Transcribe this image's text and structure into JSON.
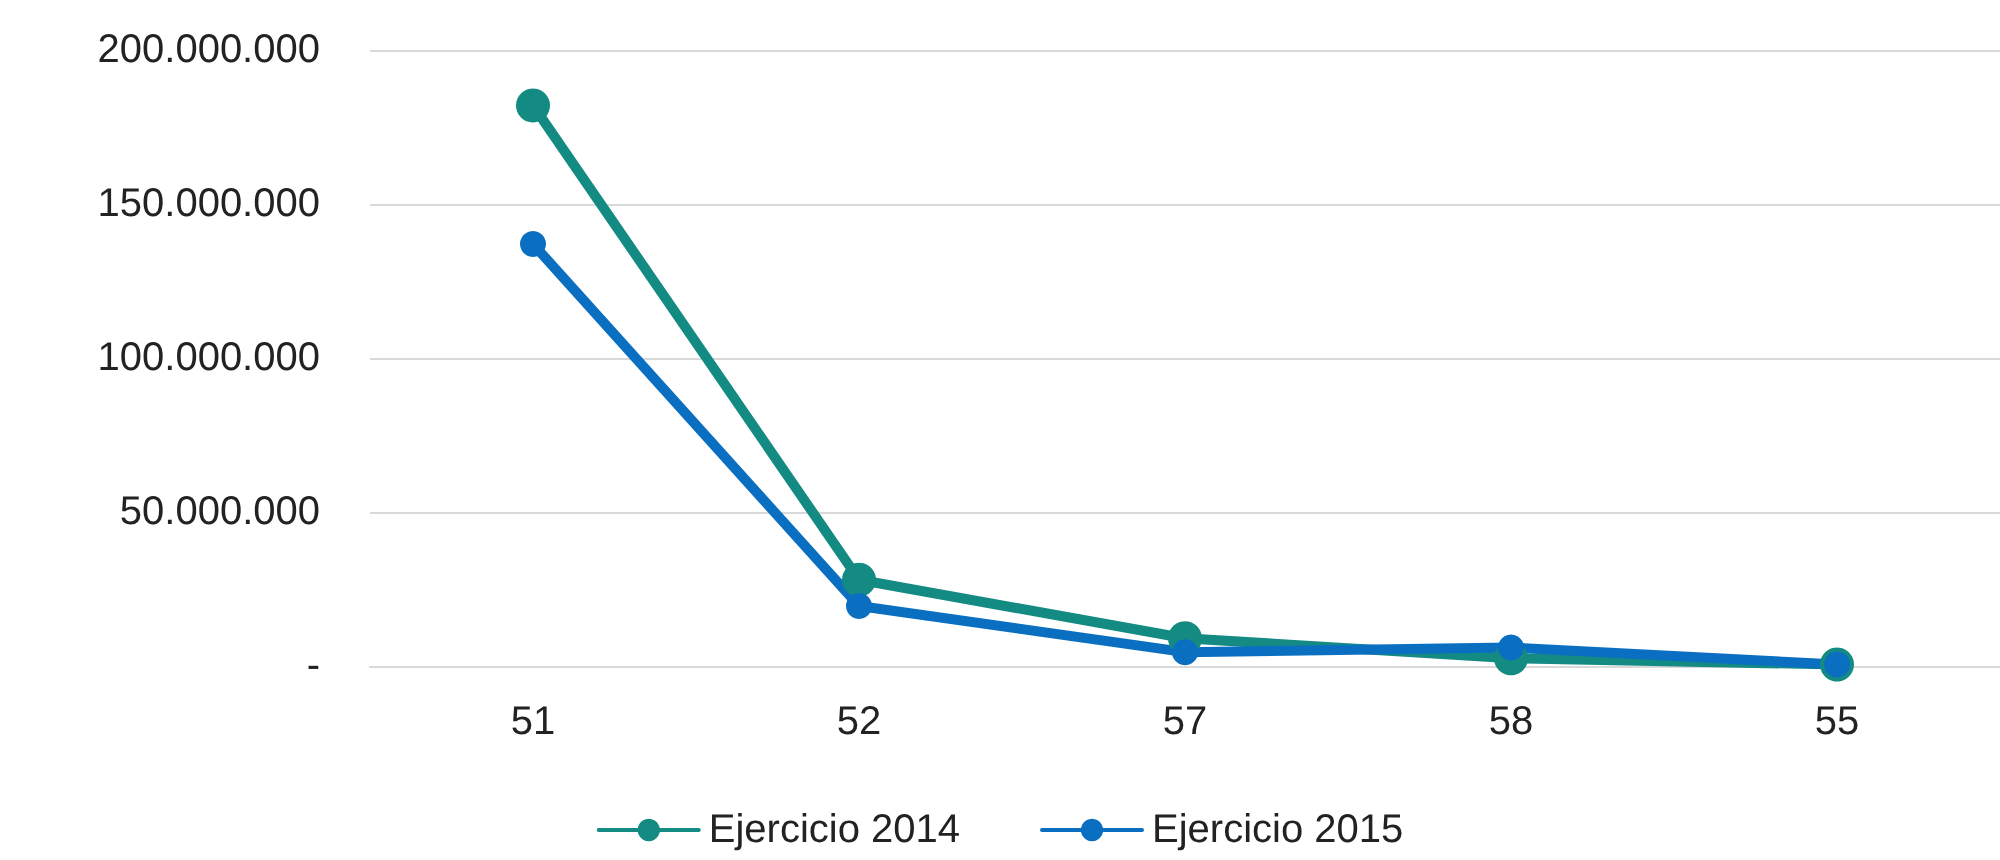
{
  "chart_data": {
    "type": "line",
    "categories": [
      "51",
      "52",
      "57",
      "58",
      "55"
    ],
    "series": [
      {
        "name": "Ejercicio 2014",
        "color": "#138b82",
        "values": [
          182000000,
          28000000,
          9000000,
          2500000,
          500000
        ]
      },
      {
        "name": "Ejercicio 2015",
        "color": "#0a6fc0",
        "values": [
          137000000,
          19500000,
          4500000,
          6000000,
          500000
        ]
      }
    ],
    "ylim": [
      0,
      200000000
    ],
    "yticks": [
      {
        "value": 0,
        "label": "-"
      },
      {
        "value": 50000000,
        "label": "50.000.000"
      },
      {
        "value": 100000000,
        "label": "100.000.000"
      },
      {
        "value": 150000000,
        "label": "150.000.000"
      },
      {
        "value": 200000000,
        "label": "200.000.000"
      }
    ],
    "grid": "y",
    "legend": "bottom",
    "marker": "circle",
    "line_style": "solid"
  }
}
